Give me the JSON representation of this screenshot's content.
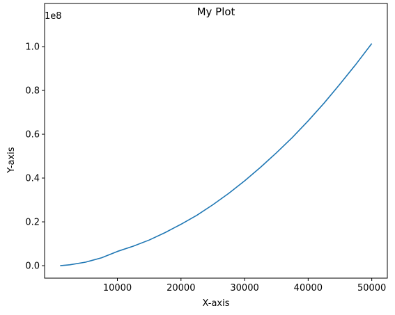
{
  "chart_data": {
    "type": "line",
    "title": "My Plot",
    "xlabel": "X-axis",
    "ylabel": "Y-axis",
    "y_offset_label": "1e8",
    "xlim": [
      -1450,
      52450
    ],
    "ylim": [
      -5700000,
      119700000
    ],
    "x_ticks": [
      {
        "value": 10000,
        "label": "10000"
      },
      {
        "value": 20000,
        "label": "20000"
      },
      {
        "value": 30000,
        "label": "30000"
      },
      {
        "value": 40000,
        "label": "40000"
      },
      {
        "value": 50000,
        "label": "50000"
      }
    ],
    "y_ticks": [
      {
        "value": 0,
        "label": "0.0"
      },
      {
        "value": 20000000,
        "label": "0.2"
      },
      {
        "value": 40000000,
        "label": "0.4"
      },
      {
        "value": 60000000,
        "label": "0.6"
      },
      {
        "value": 80000000,
        "label": "0.8"
      },
      {
        "value": 100000000,
        "label": "1.0"
      }
    ],
    "grid": false,
    "series": [
      {
        "color": "#1f77b4",
        "x": [
          1000,
          2500,
          5000,
          7500,
          10000,
          12500,
          15000,
          17500,
          20000,
          22500,
          25000,
          27500,
          30000,
          32500,
          35000,
          37500,
          40000,
          42500,
          45000,
          47500,
          50000
        ],
        "y": [
          0,
          400000,
          1600000,
          3600000,
          6500000,
          8900000,
          11700000,
          15100000,
          18900000,
          23000000,
          27800000,
          33000000,
          38700000,
          44900000,
          51500000,
          58500000,
          66100000,
          74200000,
          82900000,
          91900000,
          101400000
        ]
      }
    ]
  }
}
